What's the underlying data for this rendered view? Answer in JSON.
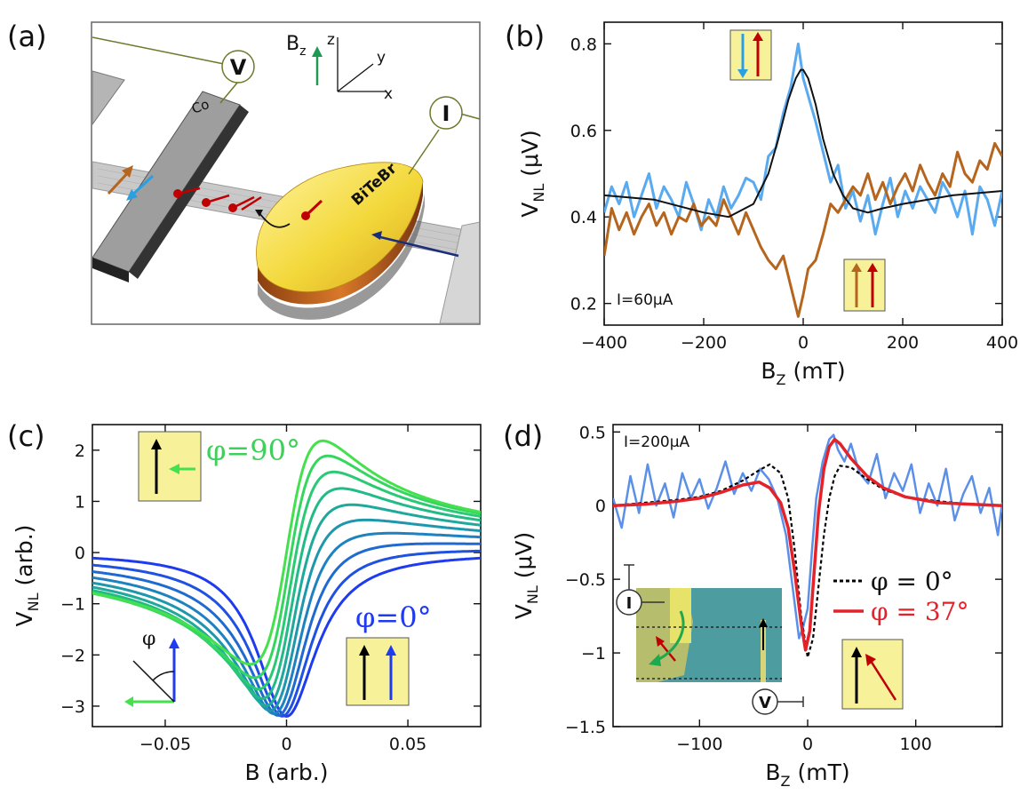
{
  "figure": {
    "panel_labels": [
      "(a)",
      "(b)",
      "(c)",
      "(d)"
    ]
  },
  "panel_a": {
    "probe_v": "V",
    "probe_i": "I",
    "electrode_label": "Co",
    "crystal_label": "BiTeBr",
    "field_label": "B",
    "field_sub": "z",
    "axis_z": "z",
    "axis_y": "y",
    "axis_x": "x",
    "colors": {
      "flake_top": "#f3df4a",
      "flake_side": "#c97022",
      "electrode": "#9a9a9a",
      "graphene": "#c7c7c7",
      "spin_red": "#c00000",
      "probe_line": "#6b7a2a"
    }
  },
  "chart_data": [
    {
      "panel": "b",
      "type": "line",
      "xlabel": "B",
      "xlabel_sub": "Z",
      "xlabel_unit": " (mT)",
      "ylabel": "V",
      "ylabel_sub": "NL",
      "ylabel_unit": " (μV)",
      "xlim": [
        -400,
        400
      ],
      "ylim": [
        0.15,
        0.85
      ],
      "xticks": [
        -400,
        -200,
        0,
        200,
        400
      ],
      "yticks": [
        0.2,
        0.4,
        0.6,
        0.8
      ],
      "annotation": "I=60μA",
      "series": [
        {
          "color": "#5aaaf0",
          "x": [
            -400,
            -385,
            -370,
            -355,
            -340,
            -325,
            -310,
            -295,
            -280,
            -265,
            -250,
            -235,
            -220,
            -205,
            -190,
            -175,
            -160,
            -145,
            -130,
            -115,
            -100,
            -85,
            -70,
            -55,
            -40,
            -25,
            -10,
            0,
            10,
            25,
            40,
            55,
            70,
            85,
            100,
            115,
            130,
            145,
            160,
            175,
            190,
            205,
            220,
            235,
            250,
            265,
            280,
            295,
            310,
            325,
            340,
            355,
            370,
            385,
            400
          ],
          "y": [
            0.41,
            0.47,
            0.43,
            0.48,
            0.4,
            0.45,
            0.5,
            0.42,
            0.47,
            0.44,
            0.4,
            0.48,
            0.43,
            0.37,
            0.44,
            0.4,
            0.47,
            0.42,
            0.45,
            0.49,
            0.48,
            0.44,
            0.54,
            0.56,
            0.64,
            0.7,
            0.8,
            0.72,
            0.68,
            0.62,
            0.55,
            0.48,
            0.52,
            0.42,
            0.46,
            0.39,
            0.45,
            0.36,
            0.43,
            0.49,
            0.4,
            0.46,
            0.42,
            0.47,
            0.44,
            0.41,
            0.48,
            0.45,
            0.4,
            0.46,
            0.36,
            0.47,
            0.44,
            0.38,
            0.46
          ]
        },
        {
          "color": "#b5651d",
          "x": [
            -400,
            -385,
            -370,
            -355,
            -340,
            -325,
            -310,
            -295,
            -280,
            -265,
            -250,
            -235,
            -220,
            -205,
            -190,
            -175,
            -160,
            -145,
            -130,
            -115,
            -100,
            -85,
            -70,
            -55,
            -40,
            -25,
            -10,
            0,
            10,
            25,
            40,
            55,
            70,
            85,
            100,
            115,
            130,
            145,
            160,
            175,
            190,
            205,
            220,
            235,
            250,
            265,
            280,
            295,
            310,
            325,
            340,
            355,
            370,
            385,
            400
          ],
          "y": [
            0.31,
            0.42,
            0.37,
            0.41,
            0.36,
            0.4,
            0.43,
            0.38,
            0.41,
            0.36,
            0.4,
            0.39,
            0.43,
            0.38,
            0.4,
            0.38,
            0.44,
            0.4,
            0.36,
            0.41,
            0.37,
            0.33,
            0.3,
            0.28,
            0.31,
            0.24,
            0.17,
            0.22,
            0.28,
            0.3,
            0.36,
            0.43,
            0.41,
            0.44,
            0.47,
            0.45,
            0.5,
            0.44,
            0.48,
            0.43,
            0.47,
            0.5,
            0.46,
            0.52,
            0.48,
            0.45,
            0.5,
            0.47,
            0.55,
            0.5,
            0.48,
            0.53,
            0.51,
            0.57,
            0.54
          ]
        },
        {
          "color": "#111111",
          "x": [
            -400,
            -300,
            -200,
            -150,
            -100,
            -70,
            -50,
            -30,
            -15,
            -5,
            0,
            10,
            25,
            40,
            60,
            80,
            100,
            130,
            160,
            200,
            300,
            400
          ],
          "y": [
            0.45,
            0.44,
            0.41,
            0.4,
            0.43,
            0.5,
            0.58,
            0.67,
            0.72,
            0.74,
            0.74,
            0.72,
            0.66,
            0.58,
            0.5,
            0.45,
            0.42,
            0.41,
            0.42,
            0.43,
            0.45,
            0.46
          ]
        }
      ]
    },
    {
      "panel": "c",
      "type": "line",
      "xlabel": "B (arb.)",
      "ylabel": "V",
      "ylabel_sub": "NL",
      "ylabel_unit": " (arb.)",
      "xlim": [
        -0.08,
        0.08
      ],
      "ylim": [
        -3.4,
        2.5
      ],
      "xticks": [
        -0.05,
        0,
        0.05
      ],
      "xtick_labels": [
        "−0.05",
        "0",
        "0.05"
      ],
      "yticks": [
        -3,
        -2,
        -1,
        0,
        1,
        2
      ],
      "ytick_labels": [
        "−3",
        "−2",
        "−1",
        "0",
        "1",
        "2"
      ],
      "label_top": "φ=90°",
      "label_bottom": "φ=0°",
      "inset_angle": "φ",
      "phi_deg": [
        0,
        10,
        20,
        30,
        40,
        50,
        60,
        70,
        80,
        90
      ],
      "series_colors": [
        "#1f3bf0",
        "#1f52e0",
        "#1f6ad0",
        "#1f82c0",
        "#1e97ad",
        "#1fa99a",
        "#22ba86",
        "#2ac973",
        "#35d65f",
        "#44e04d"
      ],
      "model": {
        "amplitude": 3.2,
        "width": 0.015
      }
    },
    {
      "panel": "d",
      "type": "line",
      "xlabel": "B",
      "xlabel_sub": "Z",
      "xlabel_unit": " (mT)",
      "ylabel": "V",
      "ylabel_sub": "NL",
      "ylabel_unit": " (μV)",
      "xlim": [
        -180,
        180
      ],
      "ylim": [
        -1.5,
        0.55
      ],
      "xticks": [
        -100,
        0,
        100
      ],
      "xtick_labels": [
        "−100",
        "0",
        "100"
      ],
      "yticks": [
        -1.5,
        -1,
        -0.5,
        0,
        0.5
      ],
      "ytick_labels": [
        "−1.5",
        "−1",
        "−0.5",
        "0",
        "0.5"
      ],
      "annotation": "I=200μA",
      "legend": [
        "φ = 0°",
        "φ = 37°"
      ],
      "legend_placement": "lower-right",
      "series": [
        {
          "name": "φ = 0°",
          "color": "#000000",
          "dashed": true,
          "x": [
            -180,
            -150,
            -120,
            -100,
            -80,
            -60,
            -45,
            -35,
            -25,
            -18,
            -12,
            -6,
            0,
            5,
            10,
            15,
            20,
            25,
            30,
            40,
            55,
            70,
            90,
            120,
            150,
            180
          ],
          "y": [
            0.0,
            0.02,
            0.04,
            0.06,
            0.1,
            0.17,
            0.24,
            0.28,
            0.22,
            0.05,
            -0.3,
            -0.75,
            -1.03,
            -0.9,
            -0.55,
            -0.2,
            0.05,
            0.2,
            0.27,
            0.26,
            0.18,
            0.11,
            0.06,
            0.03,
            0.01,
            0.0
          ]
        },
        {
          "name": "φ = 37°",
          "color": "#e3222a",
          "dashed": false,
          "x": [
            -180,
            -150,
            -120,
            -100,
            -80,
            -60,
            -45,
            -35,
            -25,
            -18,
            -12,
            -6,
            -2,
            2,
            6,
            10,
            15,
            20,
            25,
            30,
            40,
            55,
            70,
            90,
            120,
            150,
            180
          ],
          "y": [
            0.0,
            0.01,
            0.03,
            0.05,
            0.09,
            0.14,
            0.16,
            0.12,
            0.02,
            -0.15,
            -0.45,
            -0.8,
            -0.98,
            -0.85,
            -0.45,
            -0.05,
            0.25,
            0.4,
            0.45,
            0.42,
            0.32,
            0.2,
            0.12,
            0.06,
            0.02,
            0.01,
            0.0
          ]
        },
        {
          "color": "#5b8fe8",
          "dashed": false,
          "x": [
            -180,
            -172,
            -164,
            -156,
            -148,
            -140,
            -132,
            -124,
            -116,
            -108,
            -100,
            -92,
            -84,
            -76,
            -68,
            -60,
            -52,
            -44,
            -36,
            -28,
            -20,
            -14,
            -8,
            -4,
            0,
            4,
            8,
            14,
            20,
            24,
            28,
            34,
            40,
            48,
            56,
            64,
            72,
            80,
            88,
            96,
            104,
            112,
            120,
            128,
            136,
            144,
            152,
            160,
            168,
            176,
            180
          ],
          "y": [
            0.05,
            -0.15,
            0.2,
            -0.05,
            0.28,
            0.0,
            0.15,
            -0.08,
            0.22,
            0.05,
            0.18,
            -0.02,
            0.12,
            0.3,
            0.08,
            0.22,
            0.1,
            0.25,
            0.18,
            0.05,
            -0.2,
            -0.55,
            -0.9,
            -0.82,
            -0.7,
            -0.3,
            0.05,
            0.3,
            0.45,
            0.48,
            0.38,
            0.3,
            0.42,
            0.22,
            0.15,
            0.35,
            0.05,
            0.22,
            0.1,
            0.28,
            -0.05,
            0.15,
            0.0,
            0.25,
            -0.1,
            0.08,
            0.2,
            -0.05,
            0.12,
            -0.2,
            0.02
          ]
        }
      ]
    }
  ],
  "panel_d_inset": {
    "probe_i": "I",
    "probe_v": "V"
  }
}
